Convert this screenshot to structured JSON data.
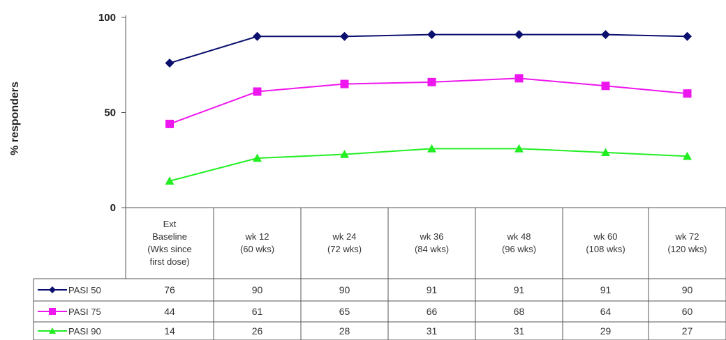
{
  "chart_data": {
    "type": "line",
    "ylabel": "% responders",
    "ylim": [
      0,
      100
    ],
    "yticks": [
      0,
      50,
      100
    ],
    "categories": [
      [
        "Ext",
        "Baseline",
        "(Wks since",
        "first dose)"
      ],
      [
        "wk 12",
        "(60 wks)"
      ],
      [
        "wk 24",
        "(72 wks)"
      ],
      [
        "wk 36",
        "(84 wks)"
      ],
      [
        "wk 48",
        "(96 wks)"
      ],
      [
        "wk 60",
        "(108 wks)"
      ],
      [
        "wk 72",
        "(120 wks)"
      ]
    ],
    "series": [
      {
        "name": "PASI 50",
        "values": [
          76,
          90,
          90,
          91,
          91,
          91,
          90
        ],
        "color": "#0b0f6e",
        "marker": "diamond"
      },
      {
        "name": "PASI 75",
        "values": [
          44,
          61,
          65,
          66,
          68,
          64,
          60
        ],
        "color": "#ee16ee",
        "marker": "square"
      },
      {
        "name": "PASI 90",
        "values": [
          14,
          26,
          28,
          31,
          31,
          29,
          27
        ],
        "color": "#22ee22",
        "marker": "triangle"
      }
    ],
    "grid": false,
    "legend": "data-table-left",
    "data_table": true
  }
}
